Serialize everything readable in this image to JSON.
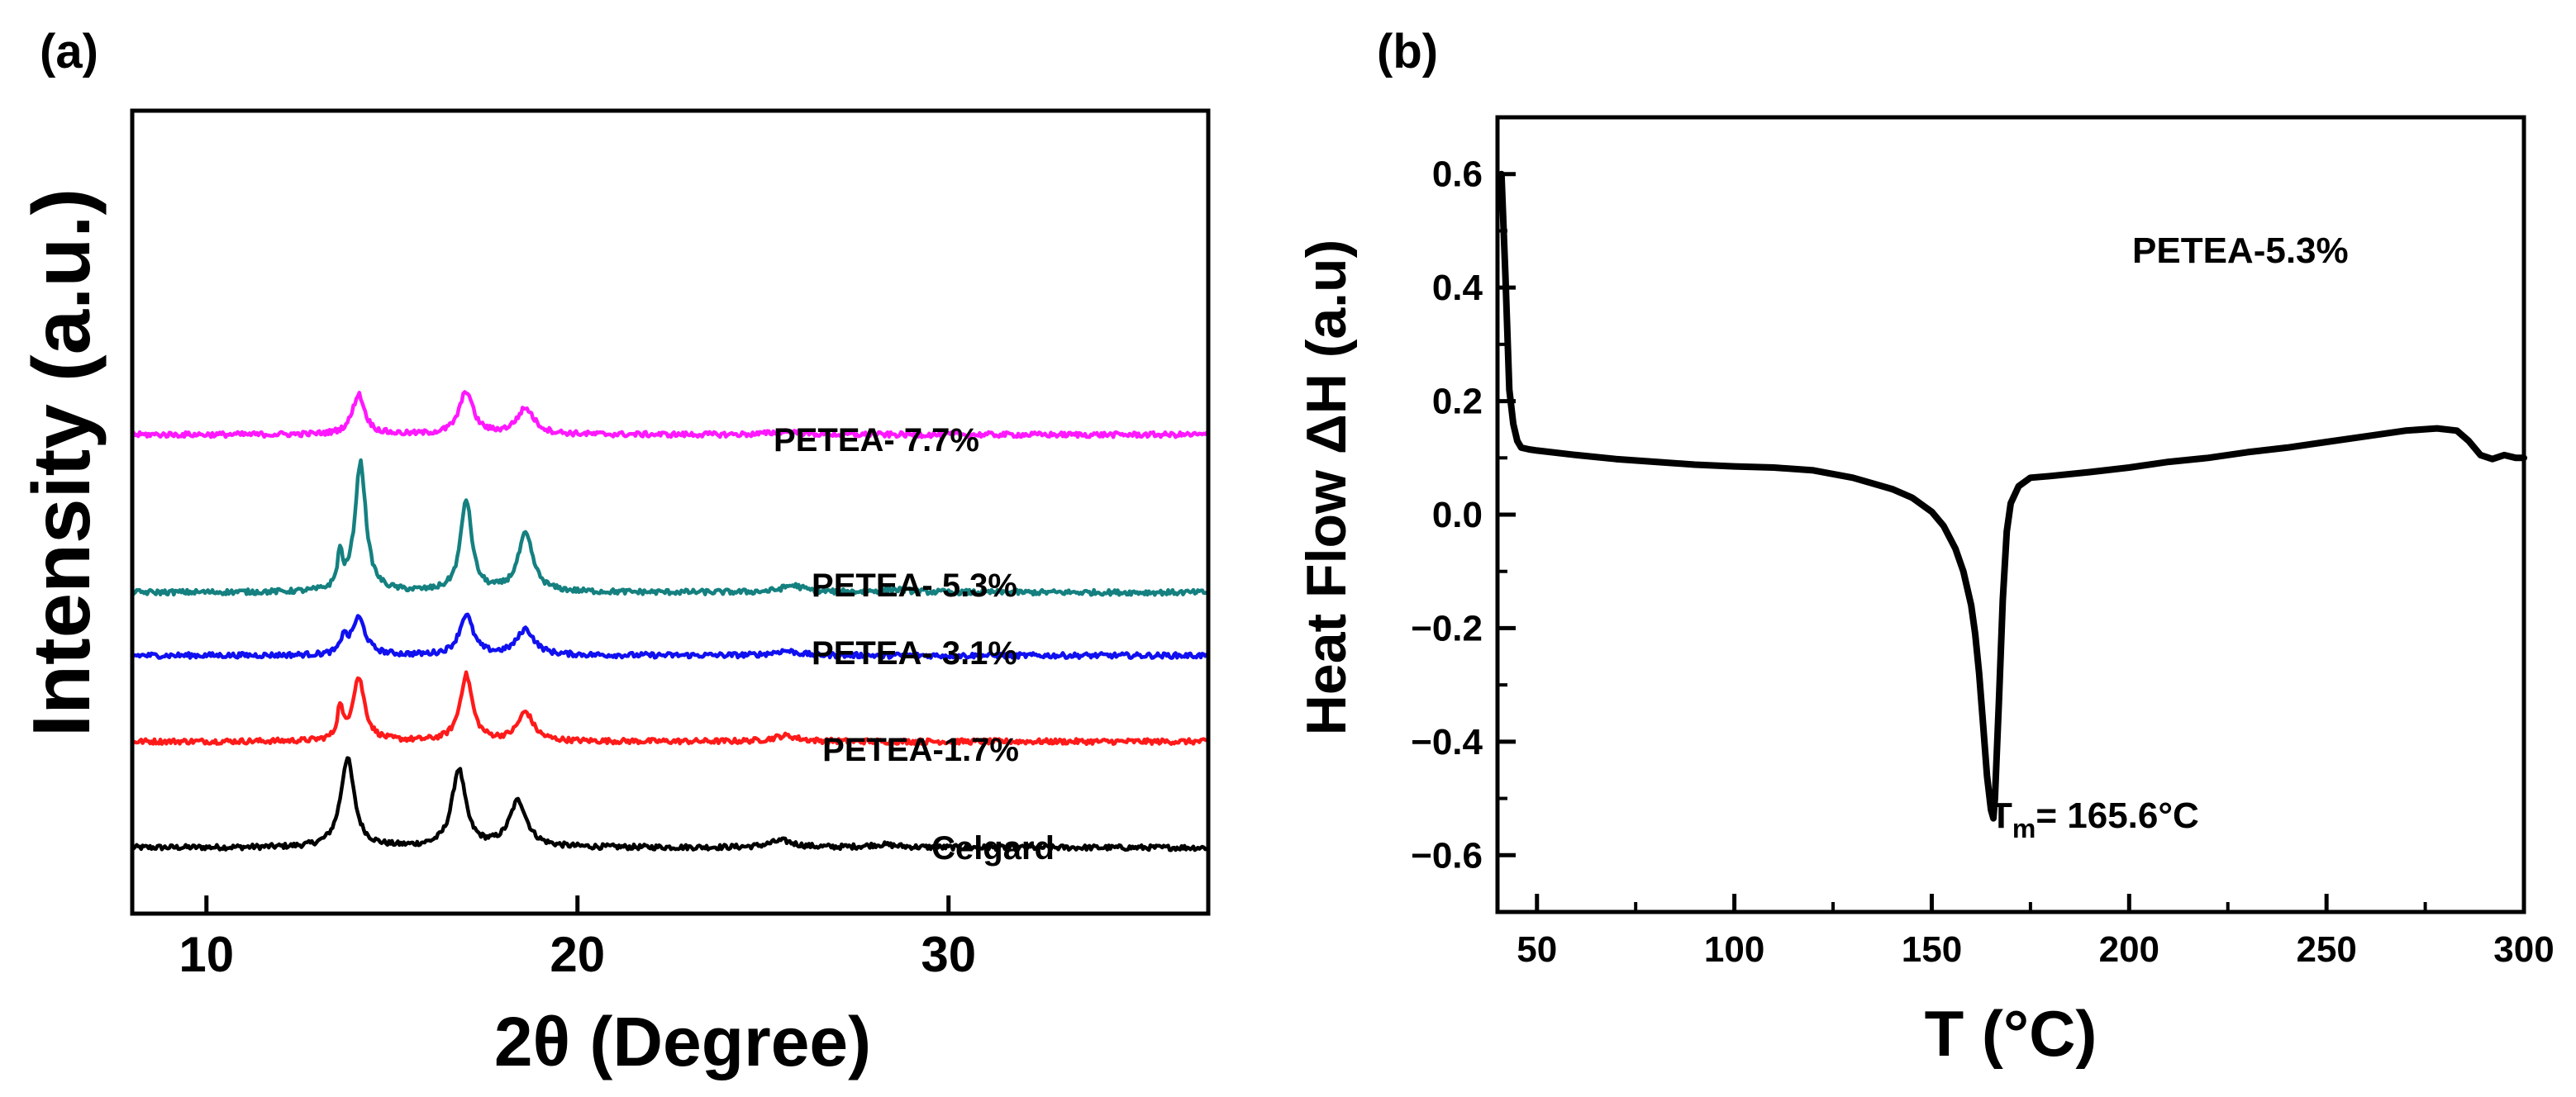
{
  "chart_data": [
    {
      "panel_label": "(a)",
      "type": "line",
      "title": "",
      "xlabel": "2θ (Degree)",
      "ylabel": "Intensity (a.u.)",
      "xlim": [
        8,
        37
      ],
      "ylim": [
        0,
        14
      ],
      "xticks": [
        10,
        20,
        30
      ],
      "yticks_shown": false,
      "grid": false,
      "legend": "inline labels",
      "series": [
        {
          "name": "Celgard",
          "label": "Celgard",
          "color": "#000000",
          "baseline": 1.15,
          "peaks": [
            [
              13.8,
              1.55,
              0.22
            ],
            [
              16.8,
              1.35,
              0.22
            ],
            [
              18.4,
              0.8,
              0.28
            ],
            [
              25.5,
              0.12,
              0.4
            ],
            [
              28.2,
              0.05,
              0.5
            ]
          ]
        },
        {
          "name": "PETEA-1.7%",
          "label": "PETEA-1.7%",
          "color": "#ff1a1a",
          "baseline": 3.0,
          "peaks": [
            [
              13.6,
              0.55,
              0.08
            ],
            [
              14.1,
              1.1,
              0.2
            ],
            [
              17.0,
              1.15,
              0.2
            ],
            [
              18.6,
              0.5,
              0.25
            ],
            [
              25.6,
              0.1,
              0.4
            ]
          ]
        },
        {
          "name": "PETEA- 3.1%",
          "label": "PETEA- 3.1%",
          "color": "#1010f0",
          "baseline": 4.5,
          "peaks": [
            [
              13.7,
              0.3,
              0.08
            ],
            [
              14.1,
              0.65,
              0.22
            ],
            [
              17.0,
              0.7,
              0.22
            ],
            [
              18.6,
              0.45,
              0.28
            ],
            [
              25.6,
              0.08,
              0.4
            ]
          ]
        },
        {
          "name": "PETEA- 5.3%",
          "label": "PETEA- 5.3%",
          "color": "#158080",
          "baseline": 5.6,
          "peaks": [
            [
              13.6,
              0.6,
              0.08
            ],
            [
              14.15,
              2.25,
              0.18
            ],
            [
              17.0,
              1.6,
              0.18
            ],
            [
              18.6,
              1.0,
              0.24
            ],
            [
              25.8,
              0.12,
              0.35
            ],
            [
              28.5,
              0.05,
              0.5
            ]
          ]
        },
        {
          "name": "PETEA- 7.7%",
          "label": "PETEA- 7.7%",
          "color": "#ff18ff",
          "baseline": 8.35,
          "peaks": [
            [
              14.1,
              0.7,
              0.2
            ],
            [
              17.0,
              0.75,
              0.22
            ],
            [
              18.6,
              0.45,
              0.28
            ],
            [
              25.6,
              0.06,
              0.4
            ]
          ]
        }
      ]
    },
    {
      "panel_label": "(b)",
      "type": "line",
      "title": "",
      "xlabel": "T (°C)",
      "ylabel": "Heat Flow ΔH (a.u)",
      "xlim": [
        40,
        300
      ],
      "ylim": [
        -0.7,
        0.7
      ],
      "xticks": [
        50,
        100,
        150,
        200,
        250,
        300
      ],
      "yticks": [
        -0.6,
        -0.4,
        -0.2,
        0.0,
        0.2,
        0.4,
        0.6
      ],
      "ytick_labels": [
        "−0.6",
        "−0.4",
        "−0.2",
        "0.0",
        "0.2",
        "0.4",
        "0.6"
      ],
      "grid": false,
      "series": [
        {
          "name": "PETEA-5.3%",
          "color": "#000000",
          "x": [
            41,
            42,
            43,
            44,
            45,
            46,
            48,
            50,
            60,
            70,
            80,
            90,
            100,
            110,
            120,
            130,
            140,
            145,
            150,
            153,
            156,
            158,
            160,
            161,
            162,
            163,
            164,
            165,
            165.6,
            166,
            167,
            168,
            169,
            170,
            172,
            175,
            180,
            190,
            200,
            210,
            220,
            230,
            240,
            250,
            260,
            270,
            278,
            283,
            286,
            289,
            292,
            295,
            298,
            300
          ],
          "y": [
            0.6,
            0.42,
            0.22,
            0.16,
            0.13,
            0.118,
            0.115,
            0.113,
            0.105,
            0.098,
            0.093,
            0.088,
            0.085,
            0.083,
            0.078,
            0.065,
            0.045,
            0.03,
            0.005,
            -0.02,
            -0.06,
            -0.1,
            -0.16,
            -0.21,
            -0.28,
            -0.37,
            -0.46,
            -0.52,
            -0.535,
            -0.5,
            -0.33,
            -0.15,
            -0.03,
            0.02,
            0.05,
            0.065,
            0.068,
            0.075,
            0.083,
            0.093,
            0.1,
            0.11,
            0.118,
            0.128,
            0.138,
            0.148,
            0.152,
            0.148,
            0.13,
            0.105,
            0.098,
            0.105,
            0.1,
            0.1
          ]
        }
      ],
      "annotations": [
        {
          "id": "sample",
          "text": "PETEA-5.3%"
        },
        {
          "id": "tm",
          "main": "T",
          "sub": "m",
          "rest": "= 165.6°C"
        }
      ]
    }
  ]
}
